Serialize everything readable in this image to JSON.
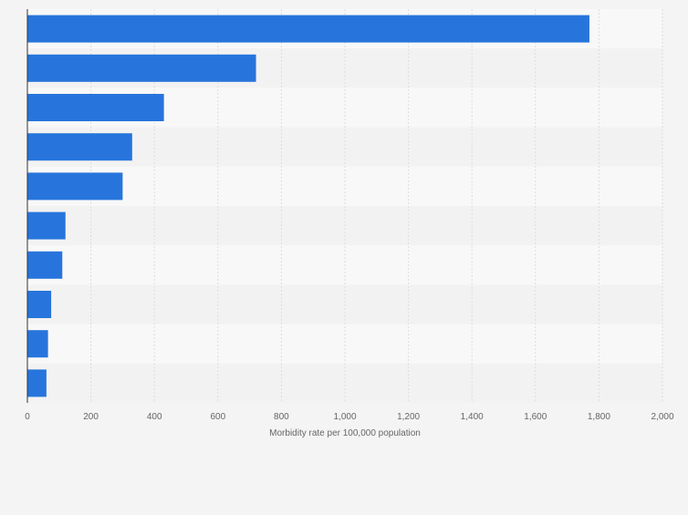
{
  "chart_data": {
    "type": "bar",
    "orientation": "horizontal",
    "title": "",
    "xlabel": "Morbidity rate per 100,000 population",
    "ylabel": "",
    "categories": [
      "",
      "",
      "",
      "",
      "",
      "",
      "",
      "",
      "",
      ""
    ],
    "values": [
      1770,
      720,
      430,
      330,
      300,
      120,
      110,
      75,
      65,
      60
    ],
    "xlim": [
      0,
      2000
    ],
    "ticks": [
      0,
      200,
      400,
      600,
      800,
      1000,
      1200,
      1400,
      1600,
      1800,
      2000
    ],
    "tick_labels": [
      "0",
      "200",
      "400",
      "600",
      "800",
      "1,000",
      "1,200",
      "1,400",
      "1,600",
      "1,800",
      "2,000"
    ],
    "grid": true,
    "legend": "none",
    "colors": {
      "bar": "#2775dc",
      "band_light": "#f8f8f8",
      "band_dark": "#f2f2f2",
      "grid": "#dddddd",
      "axis": "#333333",
      "text": "#666666"
    }
  }
}
